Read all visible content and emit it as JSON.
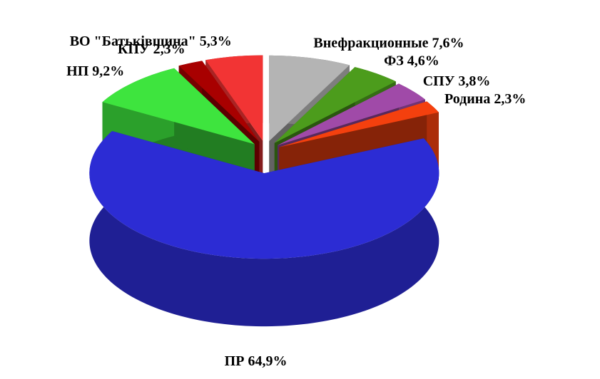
{
  "chart_data": {
    "type": "pie",
    "categories": [
      "Внефракционные",
      "ФЗ",
      "СПУ",
      "Родина",
      "ПР",
      "НП",
      "КПУ",
      "ВО \"Батьківщина\""
    ],
    "values": [
      7.6,
      4.6,
      3.8,
      2.3,
      64.9,
      9.2,
      2.3,
      5.3
    ],
    "value_labels": [
      "7,6%",
      "4,6%",
      "3,8%",
      "2,3%",
      "64,9%",
      "9,2%",
      "2,3%",
      "5,3%"
    ],
    "colors": [
      "#b4b4b4",
      "#4c9c1c",
      "#a04aa8",
      "#f4400e",
      "#2c2cd4",
      "#3ee43e",
      "#a80000",
      "#f23434"
    ]
  }
}
